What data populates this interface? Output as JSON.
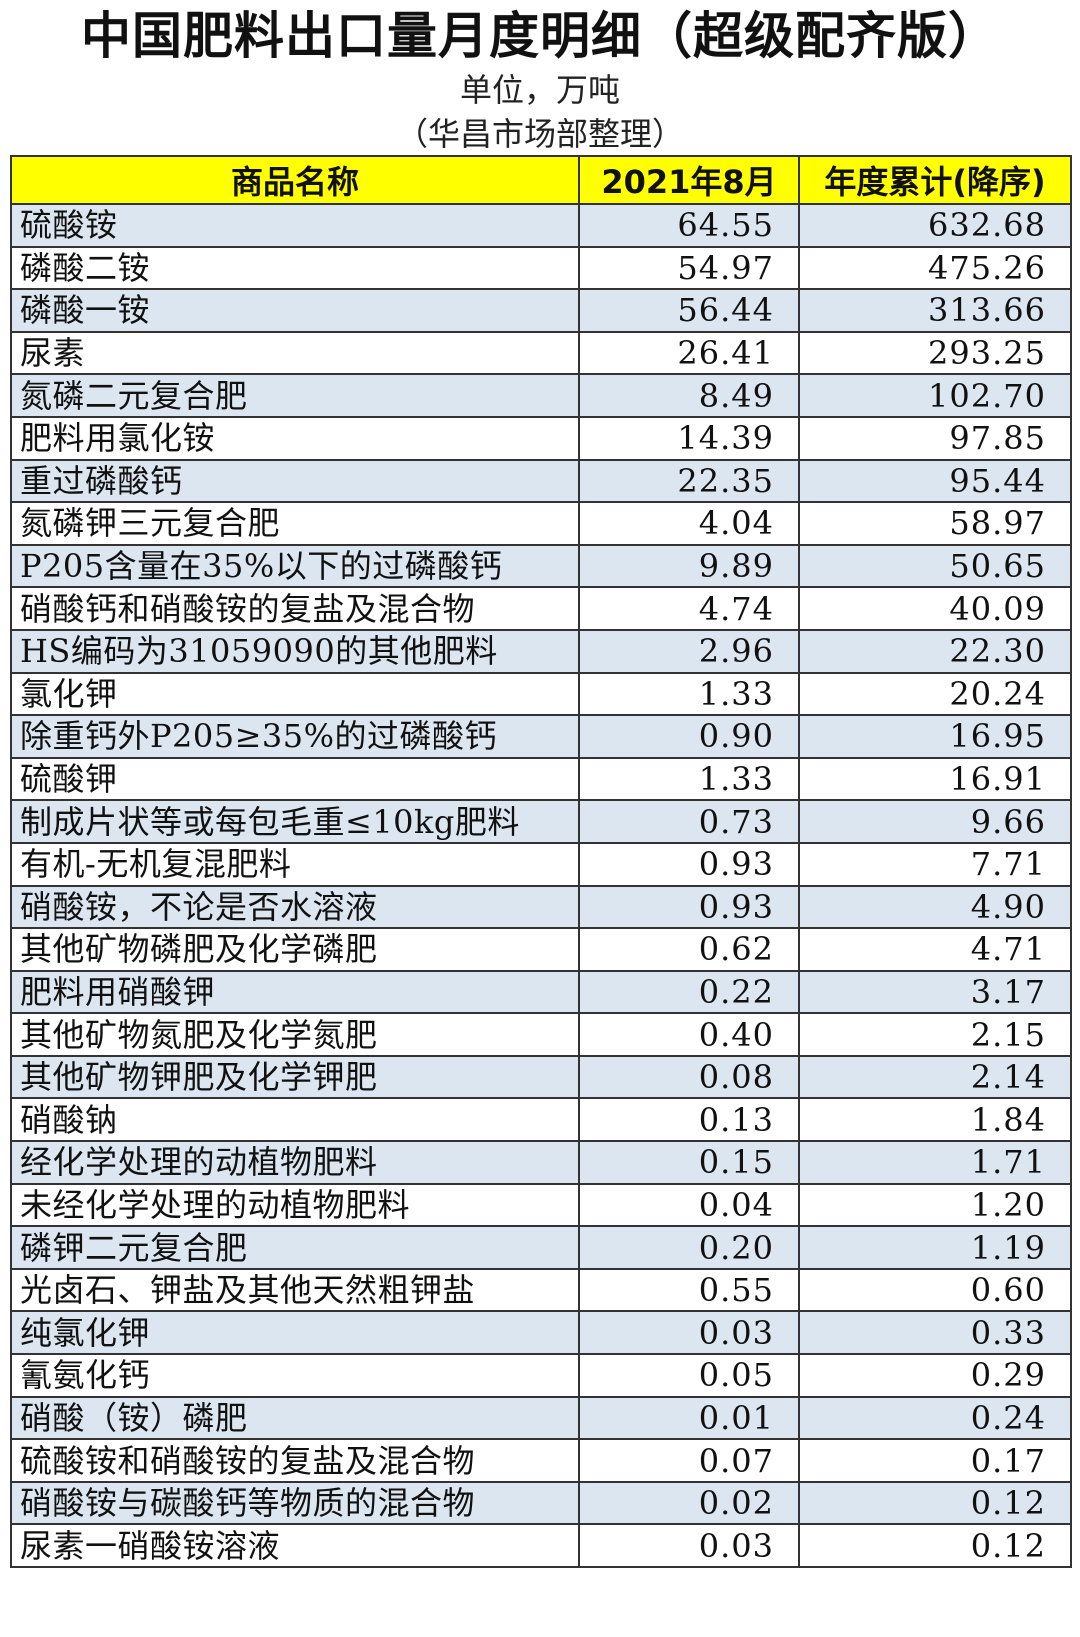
{
  "title": "中国肥料出口量月度明细（超级配齐版）",
  "unit": "单位，万吨",
  "source": "（华昌市场部整理）",
  "table": {
    "headers": [
      "商品名称",
      "2021年8月",
      "年度累计(降序)"
    ],
    "rows": [
      [
        "硫酸铵",
        "64.55",
        "632.68"
      ],
      [
        "磷酸二铵",
        "54.97",
        "475.26"
      ],
      [
        "磷酸一铵",
        "56.44",
        "313.66"
      ],
      [
        "尿素",
        "26.41",
        "293.25"
      ],
      [
        "氮磷二元复合肥",
        "8.49",
        "102.70"
      ],
      [
        "肥料用氯化铵",
        "14.39",
        "97.85"
      ],
      [
        "重过磷酸钙",
        "22.35",
        "95.44"
      ],
      [
        "氮磷钾三元复合肥",
        "4.04",
        "58.97"
      ],
      [
        "P205含量在35%以下的过磷酸钙",
        "9.89",
        "50.65"
      ],
      [
        "硝酸钙和硝酸铵的复盐及混合物",
        "4.74",
        "40.09"
      ],
      [
        "HS编码为31059090的其他肥料",
        "2.96",
        "22.30"
      ],
      [
        "氯化钾",
        "1.33",
        "20.24"
      ],
      [
        "除重钙外P205≥35%的过磷酸钙",
        "0.90",
        "16.95"
      ],
      [
        "硫酸钾",
        "1.33",
        "16.91"
      ],
      [
        "制成片状等或每包毛重≤10kg肥料",
        "0.73",
        "9.66"
      ],
      [
        "有机-无机复混肥料",
        "0.93",
        "7.71"
      ],
      [
        "硝酸铵，不论是否水溶液",
        "0.93",
        "4.90"
      ],
      [
        "其他矿物磷肥及化学磷肥",
        "0.62",
        "4.71"
      ],
      [
        "肥料用硝酸钾",
        "0.22",
        "3.17"
      ],
      [
        "其他矿物氮肥及化学氮肥",
        "0.40",
        "2.15"
      ],
      [
        "其他矿物钾肥及化学钾肥",
        "0.08",
        "2.14"
      ],
      [
        "硝酸钠",
        "0.13",
        "1.84"
      ],
      [
        "经化学处理的动植物肥料",
        "0.15",
        "1.71"
      ],
      [
        "未经化学处理的动植物肥料",
        "0.04",
        "1.20"
      ],
      [
        "磷钾二元复合肥",
        "0.20",
        "1.19"
      ],
      [
        "光卤石、钾盐及其他天然粗钾盐",
        "0.55",
        "0.60"
      ],
      [
        "纯氯化钾",
        "0.03",
        "0.33"
      ],
      [
        "氰氨化钙",
        "0.05",
        "0.29"
      ],
      [
        "硝酸（铵）磷肥",
        "0.01",
        "0.24"
      ],
      [
        "硫酸铵和硝酸铵的复盐及混合物",
        "0.07",
        "0.17"
      ],
      [
        "硝酸铵与碳酸钙等物质的混合物",
        "0.02",
        "0.12"
      ],
      [
        "尿素一硝酸铵溶液",
        "0.03",
        "0.12"
      ]
    ]
  },
  "colors": {
    "header_bg": "#ffff00",
    "row_alt_bg": "#dce6f1",
    "row_bg": "#ffffff",
    "border": "#333333"
  }
}
